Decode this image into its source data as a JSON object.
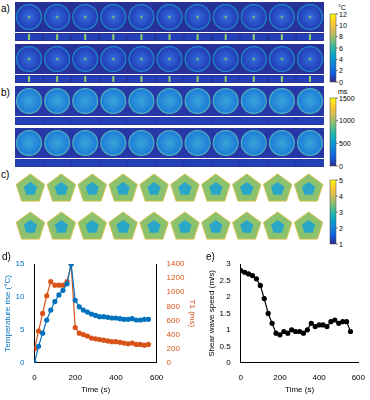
{
  "image_panels": [
    {
      "label": "a)",
      "colorbar": {
        "unit": "°C",
        "range": [
          0,
          12
        ],
        "ticks": [
          0,
          2,
          4,
          6,
          8,
          10,
          12
        ]
      }
    },
    {
      "label": "b)",
      "colorbar": {
        "unit": "ms",
        "range": [
          0,
          1500
        ],
        "ticks": [
          0,
          500,
          1000,
          1500
        ]
      }
    },
    {
      "label": "c)",
      "colorbar": {
        "range": [
          1,
          5
        ],
        "ticks": [
          1,
          2,
          3,
          4,
          5
        ]
      }
    }
  ],
  "chart_data": [
    {
      "label": "d)",
      "type": "line",
      "x_label": "Time (s)",
      "y_label": "Temperature rise (°C)",
      "y2_label": "T1 (ms)",
      "x": [
        0,
        20,
        40,
        60,
        80,
        100,
        120,
        140,
        160,
        180,
        200,
        220,
        240,
        260,
        280,
        300,
        320,
        340,
        360,
        380,
        400,
        420,
        440,
        460,
        480,
        500,
        520,
        540,
        560
      ],
      "series": [
        {
          "color": "#0072bd",
          "marker": "o",
          "values": [
            0,
            2.5,
            4.5,
            6.5,
            8,
            9.3,
            10.3,
            11,
            12,
            15,
            9.5,
            8.5,
            8,
            7.7,
            7.4,
            7.2,
            7,
            7,
            6.9,
            6.8,
            6.8,
            6.7,
            6.6,
            6.6,
            6.7,
            6.5,
            6.5,
            6.6,
            6.6
          ]
        },
        {
          "color": "#d95319",
          "marker": "o",
          "axis": "y2",
          "values": [
            200,
            450,
            700,
            950,
            1150,
            1100,
            1100,
            1100,
            1150,
            1400,
            500,
            420,
            400,
            380,
            350,
            340,
            330,
            320,
            310,
            300,
            300,
            290,
            280,
            270,
            280,
            260,
            260,
            250,
            260
          ]
        }
      ],
      "xlim": [
        0,
        600
      ],
      "xticks": [
        0,
        200,
        400,
        600
      ],
      "ylim": [
        0,
        15
      ],
      "yticks": [
        0,
        5,
        10,
        15
      ],
      "y2lim": [
        0,
        1400
      ],
      "y2ticks": [
        0,
        200,
        400,
        600,
        800,
        1000,
        1200,
        1400
      ],
      "grid": false
    },
    {
      "label": "e)",
      "type": "line",
      "x_label": "Time (s)",
      "y_label": "Shear wave speed (m/s)",
      "x": [
        0,
        20,
        40,
        60,
        80,
        100,
        120,
        140,
        160,
        180,
        200,
        220,
        240,
        260,
        280,
        300,
        320,
        340,
        360,
        380,
        400,
        420,
        440,
        460,
        480,
        500,
        520,
        540,
        560
      ],
      "series": [
        {
          "color": "#000000",
          "marker": "o",
          "values": [
            2.8,
            2.75,
            2.7,
            2.65,
            2.55,
            2.35,
            1.95,
            1.5,
            1.2,
            0.9,
            0.85,
            0.95,
            0.9,
            1.0,
            0.95,
            0.95,
            0.9,
            1.0,
            1.2,
            1.1,
            1.15,
            1.15,
            1.1,
            1.25,
            1.3,
            1.2,
            1.25,
            1.25,
            0.95
          ]
        }
      ],
      "xlim": [
        0,
        600
      ],
      "xticks": [
        0,
        200,
        400,
        600
      ],
      "ylim": [
        0,
        3
      ],
      "yticks": [
        0,
        0.5,
        1,
        1.5,
        2,
        2.5,
        3
      ],
      "grid": false
    }
  ]
}
